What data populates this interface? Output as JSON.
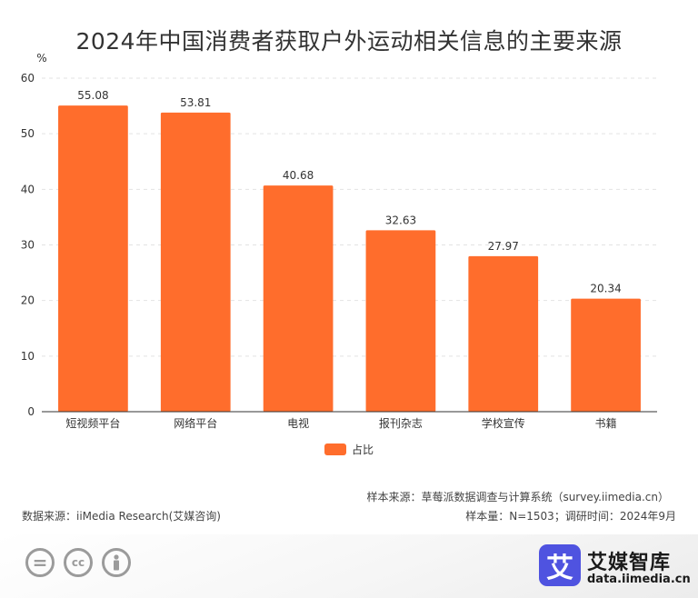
{
  "chart_data": {
    "type": "bar",
    "title": "2024年中国消费者获取户外运动相关信息的主要来源",
    "ylabel": "%",
    "categories": [
      "短视频平台",
      "网络平台",
      "电视",
      "报刊杂志",
      "学校宣传",
      "书籍"
    ],
    "series": [
      {
        "name": "占比",
        "values": [
          55.08,
          53.81,
          40.68,
          32.63,
          27.97,
          20.34
        ],
        "color": "#ff6d2c"
      }
    ],
    "value_labels": [
      "55.08",
      "53.81",
      "40.68",
      "32.63",
      "27.97",
      "20.34"
    ],
    "ylim": [
      0,
      60
    ],
    "yticks": [
      0,
      10,
      20,
      30,
      40,
      50,
      60
    ],
    "grid": true,
    "legend": "bottom-center"
  },
  "notes": {
    "sample_source": "样本来源：草莓派数据调查与计算系统（survey.iimedia.cn）",
    "data_source": "数据来源：iiMedia Research(艾媒咨询)",
    "sample_size": "样本量：N=1503；调研时间：2024年9月"
  },
  "footer": {
    "cc_icons": [
      "equals-icon",
      "cc-icon",
      "person-icon"
    ],
    "cc_glyphs": [
      "=",
      "cc",
      ""
    ],
    "logo_glyph": "艾",
    "logo_name": "艾媒智库",
    "logo_url": "data.iimedia.cn",
    "brand_color": "#4f53e0"
  }
}
